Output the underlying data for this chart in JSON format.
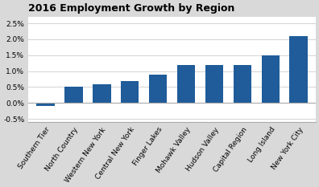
{
  "title": "2016 Employment Growth by Region",
  "categories": [
    "Southern Tier",
    "North Country",
    "Western New York",
    "Central New York",
    "Finger Lakes",
    "Mohawk Valley",
    "Hudson Valley",
    "Capital Region",
    "Long Island",
    "New York City"
  ],
  "values": [
    -0.001,
    0.005,
    0.006,
    0.007,
    0.009,
    0.012,
    0.012,
    0.012,
    0.015,
    0.021
  ],
  "bar_color": "#1F5C99",
  "background_color": "#D9D9D9",
  "plot_bg_color": "#FFFFFF",
  "ylim": [
    -0.006,
    0.027
  ],
  "yticks": [
    -0.005,
    0.0,
    0.005,
    0.01,
    0.015,
    0.02,
    0.025
  ],
  "title_fontsize": 9,
  "tick_fontsize": 6.5,
  "label_fontsize": 6.5
}
